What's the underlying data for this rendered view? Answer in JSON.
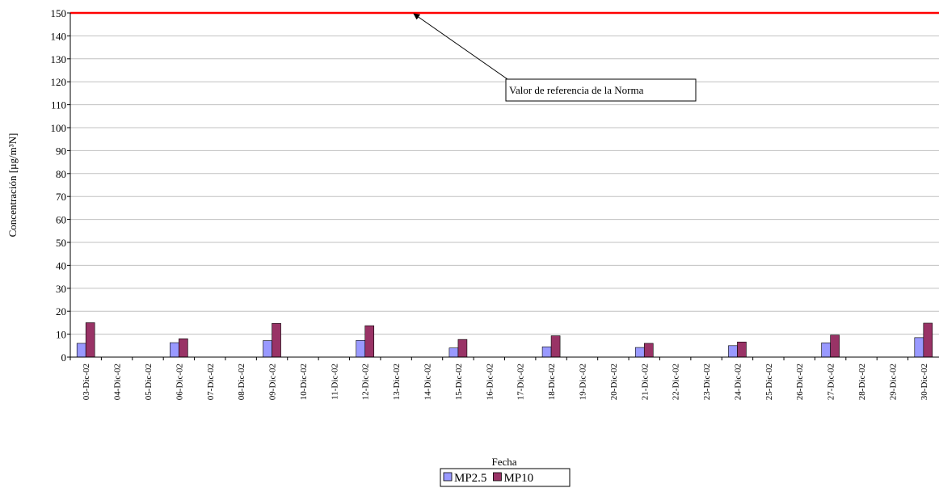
{
  "chart_data": {
    "type": "bar",
    "categories": [
      "03-Dic-02",
      "04-Dic-02",
      "05-Dic-02",
      "06-Dic-02",
      "07-Dic-02",
      "08-Dic-02",
      "09-Dic-02",
      "10-Dic-02",
      "11-Dic-02",
      "12-Dic-02",
      "13-Dic-02",
      "14-Dic-02",
      "15-Dic-02",
      "16-Dic-02",
      "17-Dic-02",
      "18-Dic-02",
      "19-Dic-02",
      "20-Dic-02",
      "21-Dic-02",
      "22-Dic-02",
      "23-Dic-02",
      "24-Dic-02",
      "25-Dic-02",
      "26-Dic-02",
      "27-Dic-02",
      "28-Dic-02",
      "29-Dic-02",
      "30-Dic-02"
    ],
    "series": [
      {
        "name": "MP2.5",
        "color": "#9999ff",
        "values": [
          6,
          null,
          null,
          6.3,
          null,
          null,
          7.2,
          null,
          null,
          7.3,
          null,
          null,
          4,
          null,
          null,
          4.5,
          null,
          null,
          4.2,
          null,
          null,
          5,
          null,
          null,
          6.2,
          null,
          null,
          8.5
        ]
      },
      {
        "name": "MP10",
        "color": "#993366",
        "values": [
          15,
          null,
          null,
          8,
          null,
          null,
          14.7,
          null,
          null,
          13.7,
          null,
          null,
          7.7,
          null,
          null,
          9.3,
          null,
          null,
          6,
          null,
          null,
          6.6,
          null,
          null,
          9.6,
          null,
          null,
          14.8
        ]
      }
    ],
    "x_label": "Fecha",
    "y_label": "Concentración [µg/m³N]",
    "ylim": [
      0,
      150
    ],
    "yticks": [
      0,
      10,
      20,
      30,
      40,
      50,
      60,
      70,
      80,
      90,
      100,
      110,
      120,
      130,
      140,
      150
    ],
    "grid": true,
    "legend": "bottom",
    "reference_line": {
      "value": 150,
      "label": "Valor de referencia de la Norma",
      "color": "#ff0000"
    }
  }
}
